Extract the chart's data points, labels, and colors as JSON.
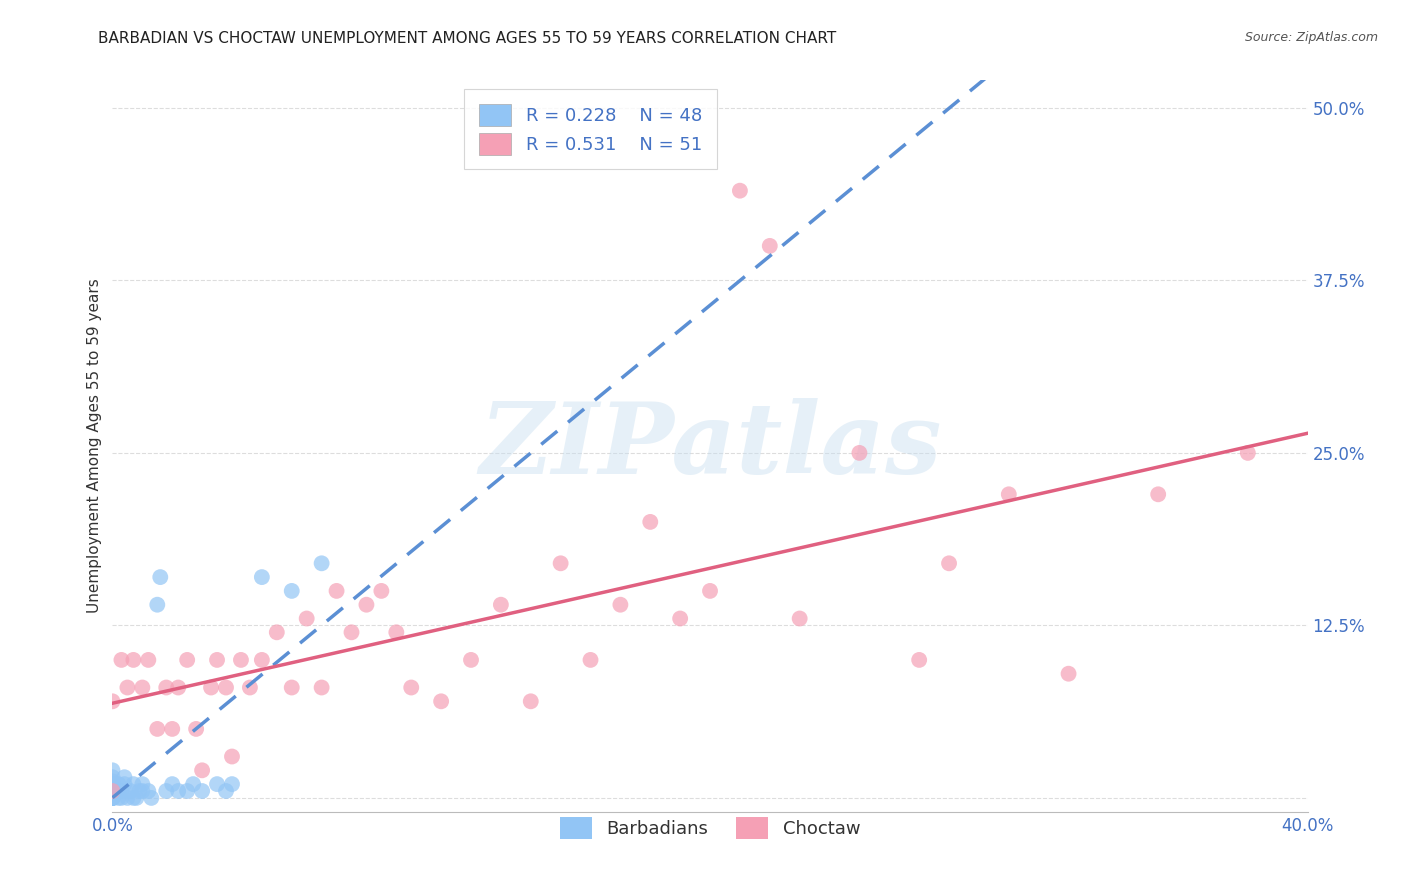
{
  "title": "BARBADIAN VS CHOCTAW UNEMPLOYMENT AMONG AGES 55 TO 59 YEARS CORRELATION CHART",
  "source": "Source: ZipAtlas.com",
  "ylabel": "Unemployment Among Ages 55 to 59 years",
  "xlim": [
    0.0,
    0.4
  ],
  "ylim": [
    -0.01,
    0.52
  ],
  "xticks": [
    0.0,
    0.4
  ],
  "xtick_labels": [
    "0.0%",
    "40.0%"
  ],
  "yticks": [
    0.0,
    0.125,
    0.25,
    0.375,
    0.5
  ],
  "ytick_labels_right": [
    "",
    "12.5%",
    "25.0%",
    "37.5%",
    "50.0%"
  ],
  "legend_labels": [
    "Barbadians",
    "Choctaw"
  ],
  "barbadian_color": "#92C5F5",
  "choctaw_color": "#F5A0B5",
  "barbadian_line_color": "#5B8FD4",
  "choctaw_line_color": "#E06080",
  "R_barbadian": 0.228,
  "N_barbadian": 48,
  "R_choctaw": 0.531,
  "N_choctaw": 51,
  "barbadian_x": [
    0.0,
    0.0,
    0.0,
    0.0,
    0.0,
    0.0,
    0.0,
    0.0,
    0.0,
    0.0,
    0.0,
    0.0,
    0.0,
    0.0,
    0.0,
    0.0,
    0.0,
    0.0,
    0.002,
    0.002,
    0.003,
    0.003,
    0.004,
    0.004,
    0.005,
    0.006,
    0.007,
    0.007,
    0.008,
    0.009,
    0.01,
    0.01,
    0.012,
    0.013,
    0.015,
    0.016,
    0.018,
    0.02,
    0.022,
    0.025,
    0.027,
    0.03,
    0.035,
    0.038,
    0.04,
    0.05,
    0.06,
    0.07
  ],
  "barbadian_y": [
    0.0,
    0.0,
    0.0,
    0.0,
    0.0,
    0.0,
    0.002,
    0.003,
    0.004,
    0.005,
    0.006,
    0.007,
    0.008,
    0.01,
    0.01,
    0.012,
    0.015,
    0.02,
    0.0,
    0.01,
    0.0,
    0.005,
    0.01,
    0.015,
    0.0,
    0.005,
    0.0,
    0.01,
    0.0,
    0.005,
    0.005,
    0.01,
    0.005,
    0.0,
    0.14,
    0.16,
    0.005,
    0.01,
    0.005,
    0.005,
    0.01,
    0.005,
    0.01,
    0.005,
    0.01,
    0.16,
    0.15,
    0.17
  ],
  "choctaw_x": [
    0.0,
    0.0,
    0.003,
    0.005,
    0.007,
    0.01,
    0.012,
    0.015,
    0.018,
    0.02,
    0.022,
    0.025,
    0.028,
    0.03,
    0.033,
    0.035,
    0.038,
    0.04,
    0.043,
    0.046,
    0.05,
    0.055,
    0.06,
    0.065,
    0.07,
    0.075,
    0.08,
    0.085,
    0.09,
    0.095,
    0.1,
    0.11,
    0.12,
    0.13,
    0.14,
    0.15,
    0.16,
    0.17,
    0.18,
    0.19,
    0.2,
    0.21,
    0.22,
    0.23,
    0.25,
    0.27,
    0.28,
    0.3,
    0.32,
    0.35,
    0.38
  ],
  "choctaw_y": [
    0.005,
    0.07,
    0.1,
    0.08,
    0.1,
    0.08,
    0.1,
    0.05,
    0.08,
    0.05,
    0.08,
    0.1,
    0.05,
    0.02,
    0.08,
    0.1,
    0.08,
    0.03,
    0.1,
    0.08,
    0.1,
    0.12,
    0.08,
    0.13,
    0.08,
    0.15,
    0.12,
    0.14,
    0.15,
    0.12,
    0.08,
    0.07,
    0.1,
    0.14,
    0.07,
    0.17,
    0.1,
    0.14,
    0.2,
    0.13,
    0.15,
    0.44,
    0.4,
    0.13,
    0.25,
    0.1,
    0.17,
    0.22,
    0.09,
    0.22,
    0.25
  ],
  "watermark_text": "ZIPatlas",
  "watermark_zip_color": "#C8DFF0",
  "watermark_atlas_color": "#C8DFF0",
  "background_color": "#FFFFFF",
  "grid_color": "#DDDDDD",
  "title_fontsize": 11,
  "axis_label_fontsize": 11,
  "tick_fontsize": 12,
  "tick_color": "#4472C4",
  "legend_fontsize": 13
}
